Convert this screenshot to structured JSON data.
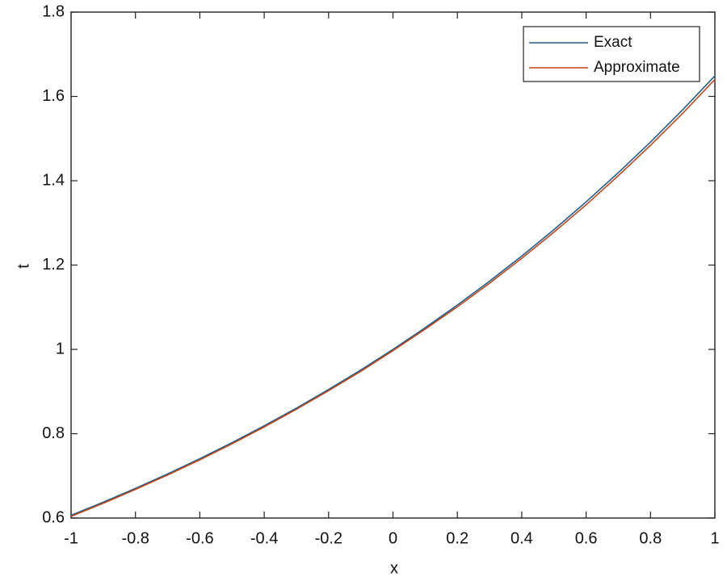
{
  "chart_data": {
    "type": "line",
    "x": [
      -1,
      -0.9,
      -0.8,
      -0.7,
      -0.6,
      -0.5,
      -0.4,
      -0.3,
      -0.2,
      -0.1,
      0,
      0.1,
      0.2,
      0.3,
      0.4,
      0.5,
      0.6,
      0.7,
      0.8,
      0.9,
      1
    ],
    "series": [
      {
        "name": "Exact",
        "color": "#1f5f8b",
        "values": [
          0.6065,
          0.6376,
          0.6703,
          0.7047,
          0.7408,
          0.7788,
          0.8187,
          0.8607,
          0.9048,
          0.9512,
          1.0,
          1.0513,
          1.1052,
          1.1618,
          1.2214,
          1.284,
          1.3499,
          1.4191,
          1.4918,
          1.5683,
          1.6487
        ]
      },
      {
        "name": "Approximate",
        "color": "#c2451a",
        "values": [
          0.604,
          0.635,
          0.668,
          0.702,
          0.738,
          0.776,
          0.816,
          0.858,
          0.902,
          0.948,
          0.997,
          1.048,
          1.101,
          1.157,
          1.216,
          1.278,
          1.343,
          1.412,
          1.484,
          1.56,
          1.64
        ]
      }
    ],
    "xlabel": "x",
    "ylabel": "t",
    "xlim": [
      -1,
      1
    ],
    "xticks": [
      -1,
      -0.8,
      -0.6,
      -0.4,
      -0.2,
      0,
      0.2,
      0.4,
      0.6,
      0.8,
      1
    ],
    "ylim": [
      0.6,
      1.8
    ],
    "yticks": [
      0.6,
      0.8,
      1,
      1.2,
      1.4,
      1.6,
      1.8
    ],
    "grid": false,
    "legend": "upper-right"
  }
}
